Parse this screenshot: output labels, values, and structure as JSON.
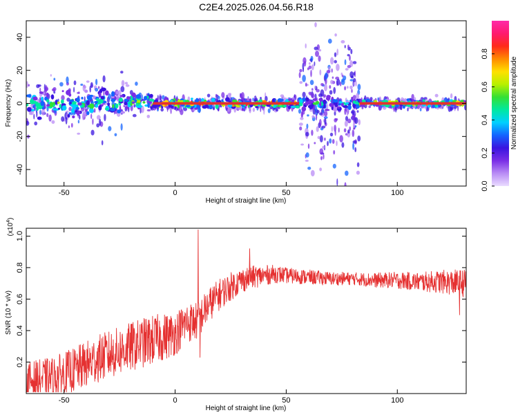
{
  "figure_title": "C2E4.2025.026.04.56.R18",
  "colors": {
    "snr_line": "#e53030",
    "frame": "#000000",
    "background": "#ffffff",
    "ridge_core": "#e53030",
    "colormap": [
      "#eadcff",
      "#b98cf5",
      "#7a2ee6",
      "#3a14e0",
      "#1464ff",
      "#00d0ff",
      "#00e8a0",
      "#34e034",
      "#b8f000",
      "#ffe000",
      "#ff8a00",
      "#ff2a1a",
      "#ff1a6e",
      "#ff2aa8"
    ]
  },
  "chart_data": [
    {
      "type": "heatmap",
      "title": "C2E4.2025.026.04.56.R18",
      "xlabel": "Height of straight line (km)",
      "ylabel": "Frequency (Hz)",
      "xlim": [
        -67,
        131
      ],
      "ylim": [
        -50,
        50
      ],
      "x_ticks": [
        -50,
        0,
        50,
        100
      ],
      "y_ticks": [
        -40,
        -20,
        0,
        20,
        40
      ],
      "colorbar": {
        "label": "Normalized spectral amplitude",
        "range": [
          0,
          1
        ],
        "ticks": [
          "0.0",
          "0.2",
          "0.4",
          "0.6",
          "0.8"
        ]
      },
      "regions": [
        {
          "x": [
            -67,
            -23
          ],
          "center_hz": 0,
          "spread_hz": 6,
          "scatter_hz": 15,
          "peak": 0.65
        },
        {
          "x": [
            -23,
            -10
          ],
          "center_hz": 1,
          "spread_hz": 4,
          "scatter_hz": 8,
          "peak": 0.7
        },
        {
          "x": [
            -10,
            56
          ],
          "center_hz": 0,
          "spread_hz": 2,
          "scatter_hz": 4,
          "peak": 0.95
        },
        {
          "x": [
            56,
            83
          ],
          "center_hz": 0,
          "spread_hz": 3,
          "scatter_hz": 38,
          "peak": 0.55
        },
        {
          "x": [
            83,
            131
          ],
          "center_hz": 0,
          "spread_hz": 1.5,
          "scatter_hz": 3,
          "peak": 0.95
        }
      ]
    },
    {
      "type": "line",
      "xlabel": "Height of straight line (km)",
      "ylabel": "SNR (10 * v/v)",
      "y_multiplier": "(x10",
      "y_multiplier_exp": "4",
      "xlim": [
        -67,
        131
      ],
      "ylim": [
        0,
        1.05
      ],
      "x_ticks": [
        -50,
        0,
        50,
        100
      ],
      "y_ticks": [
        "0.2",
        "0.4",
        "0.6",
        "0.8",
        "1.0"
      ],
      "trend": {
        "x": [
          -67,
          -55,
          -45,
          -35,
          -25,
          -15,
          -5,
          0,
          5,
          10,
          15,
          20,
          25,
          30,
          35,
          40,
          45,
          50,
          60,
          70,
          80,
          90,
          100,
          110,
          120,
          131
        ],
        "y": [
          0.08,
          0.1,
          0.15,
          0.22,
          0.27,
          0.32,
          0.36,
          0.38,
          0.45,
          0.46,
          0.56,
          0.63,
          0.68,
          0.72,
          0.74,
          0.75,
          0.76,
          0.75,
          0.74,
          0.73,
          0.73,
          0.72,
          0.72,
          0.71,
          0.71,
          0.7
        ]
      },
      "noise": {
        "x": [
          -67,
          -40,
          -10,
          10,
          30,
          50,
          80,
          110,
          131
        ],
        "amplitude": [
          0.12,
          0.15,
          0.16,
          0.12,
          0.08,
          0.05,
          0.04,
          0.06,
          0.09
        ]
      },
      "spikes": [
        {
          "x": 10.3,
          "y": 1.04
        },
        {
          "x": 11.2,
          "y": 0.23
        },
        {
          "x": 128,
          "y": 0.5
        },
        {
          "x": 33.5,
          "y": 0.92
        }
      ]
    }
  ]
}
